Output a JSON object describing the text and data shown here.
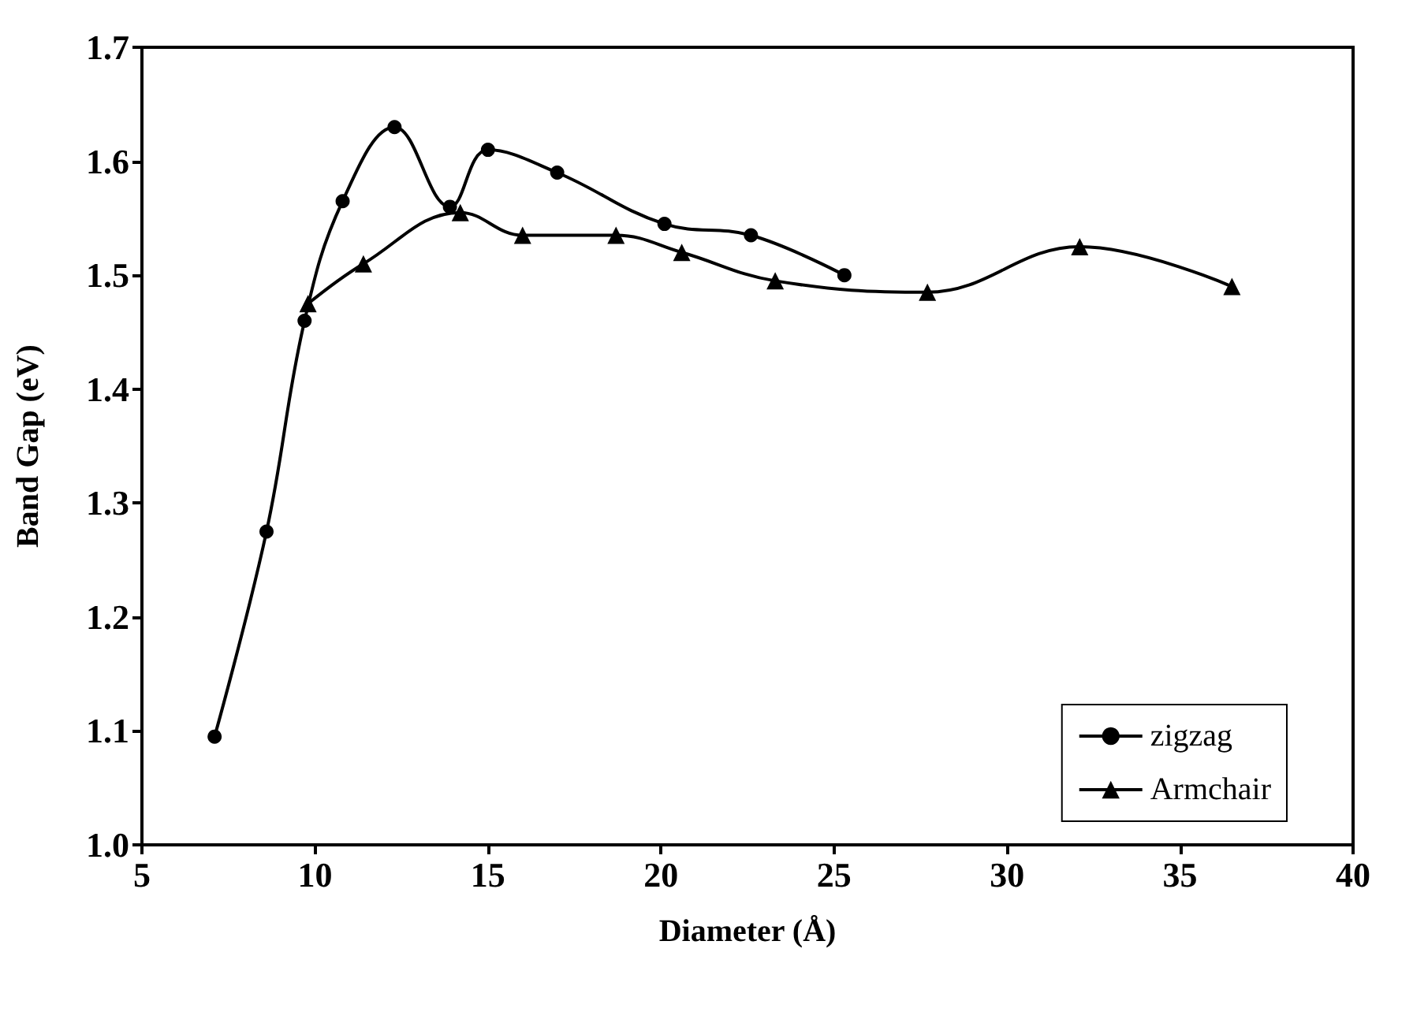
{
  "chart_data": {
    "type": "line",
    "xlabel": "Diameter (Å)",
    "ylabel": "Band Gap (eV)",
    "xlim": [
      5,
      40
    ],
    "xticks": [
      5,
      10,
      15,
      20,
      25,
      30,
      35,
      40
    ],
    "ylim": [
      1.0,
      1.7
    ],
    "yticks": [
      {
        "value": 1,
        "label": "1.0"
      },
      {
        "value": 1.1,
        "label": "1.1"
      },
      {
        "value": 1.2,
        "label": "1.2"
      },
      {
        "value": 1.3,
        "label": "1.3"
      },
      {
        "value": 1.4,
        "label": "1.4"
      },
      {
        "value": 1.5,
        "label": "1.5"
      },
      {
        "value": 1.6,
        "label": "1.6"
      },
      {
        "value": 1.7,
        "label": "1.7"
      }
    ],
    "grid": false,
    "legend": "bottom right",
    "line_style": "solid",
    "series": [
      {
        "name": "zigzag",
        "color": "#000000",
        "marker": "circle",
        "x": [
          7.1,
          8.6,
          9.7,
          10.8,
          12.3,
          13.9,
          15.0,
          17.0,
          20.1,
          22.6,
          25.3
        ],
        "values": [
          1.095,
          1.275,
          1.46,
          1.565,
          1.63,
          1.56,
          1.61,
          1.59,
          1.545,
          1.535,
          1.5
        ]
      },
      {
        "name": "Armchair",
        "color": "#000000",
        "marker": "triangle",
        "x": [
          9.8,
          11.4,
          14.2,
          16.0,
          18.7,
          20.6,
          23.3,
          27.7,
          32.1,
          36.5
        ],
        "values": [
          1.475,
          1.51,
          1.555,
          1.535,
          1.535,
          1.52,
          1.495,
          1.485,
          1.525,
          1.49
        ]
      }
    ]
  }
}
